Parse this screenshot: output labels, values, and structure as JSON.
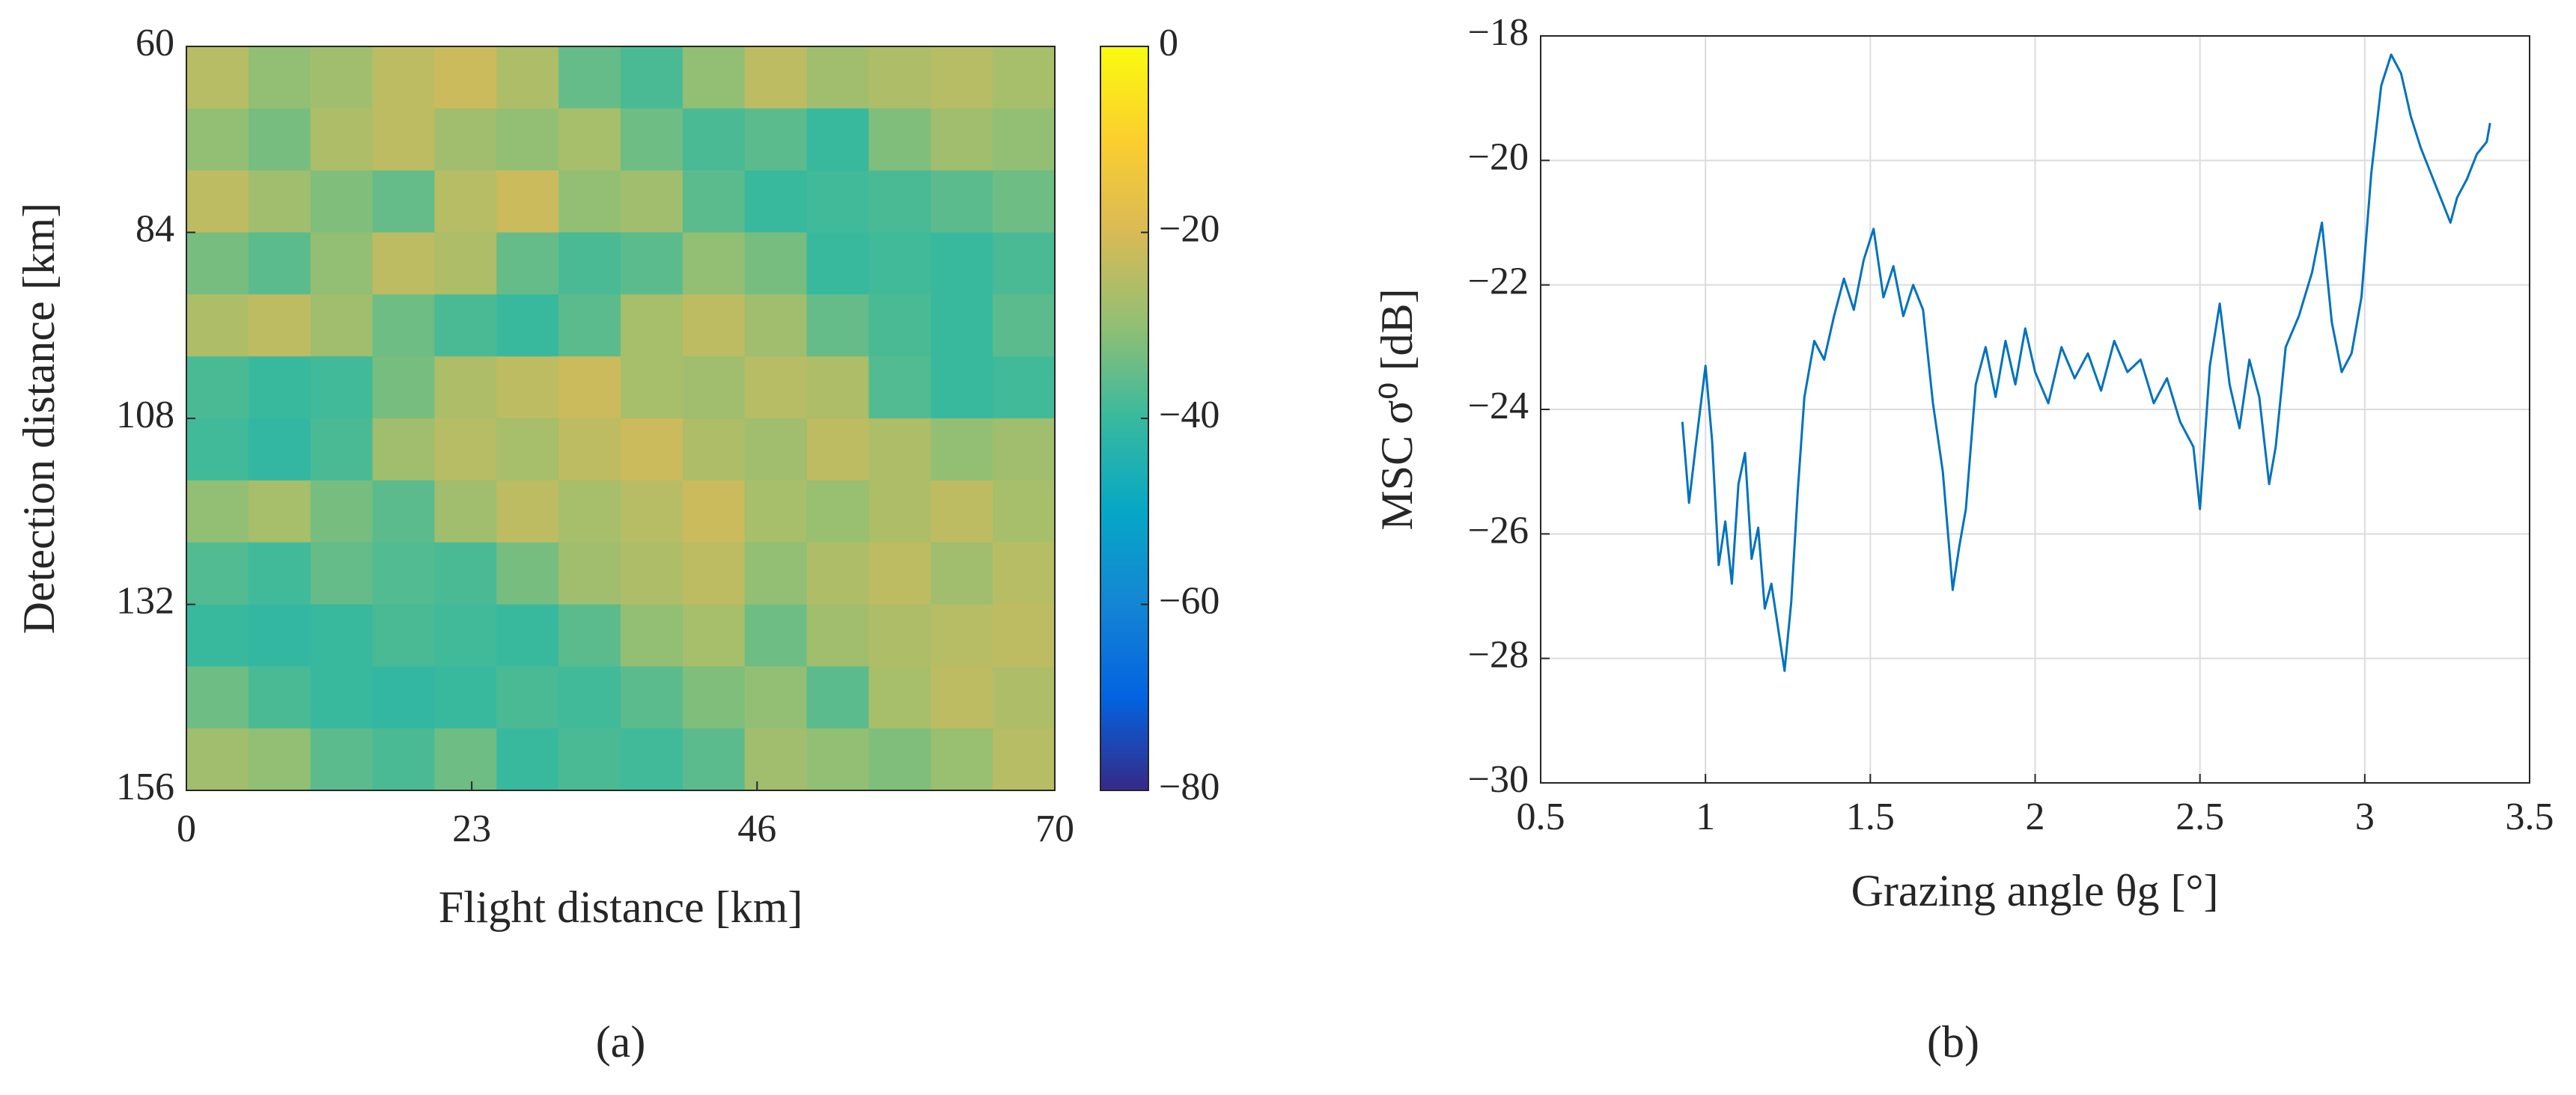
{
  "chart_data": [
    {
      "type": "heatmap",
      "label": "(a)",
      "xlabel": "Flight distance [km]",
      "ylabel": "Detection distance [km]",
      "xlim": [
        0,
        70
      ],
      "xticks": [
        0,
        23,
        46,
        70
      ],
      "ylim": [
        156,
        60
      ],
      "yticks": [
        60,
        84,
        108,
        132,
        156
      ],
      "clim": [
        -80,
        0
      ],
      "cticks": [
        0,
        {
          "value": -20,
          "label": "−20"
        },
        {
          "value": -40,
          "label": "−40"
        },
        {
          "value": -60,
          "label": "−60"
        },
        {
          "value": -80,
          "label": "−80"
        }
      ],
      "colormap": [
        "#352a87",
        "#0363e1",
        "#1485d4",
        "#06a7c6",
        "#38b99e",
        "#92bf73",
        "#d9ba56",
        "#fcce2e",
        "#f9fb0e"
      ],
      "z": [
        [
          -25,
          -30,
          -28,
          -24,
          -22,
          -26,
          -35,
          -38,
          -30,
          -24,
          -28,
          -26,
          -25,
          -27
        ],
        [
          -30,
          -33,
          -26,
          -24,
          -28,
          -30,
          -27,
          -34,
          -38,
          -36,
          -40,
          -32,
          -28,
          -30
        ],
        [
          -24,
          -28,
          -32,
          -35,
          -25,
          -22,
          -30,
          -28,
          -36,
          -40,
          -39,
          -38,
          -36,
          -34
        ],
        [
          -33,
          -36,
          -30,
          -24,
          -26,
          -35,
          -38,
          -36,
          -30,
          -33,
          -40,
          -39,
          -40,
          -38
        ],
        [
          -26,
          -24,
          -28,
          -34,
          -38,
          -40,
          -36,
          -27,
          -24,
          -28,
          -35,
          -38,
          -40,
          -36
        ],
        [
          -38,
          -40,
          -39,
          -33,
          -26,
          -24,
          -22,
          -27,
          -28,
          -25,
          -26,
          -37,
          -40,
          -39
        ],
        [
          -39,
          -41,
          -38,
          -28,
          -25,
          -27,
          -24,
          -22,
          -26,
          -28,
          -24,
          -26,
          -30,
          -28
        ],
        [
          -30,
          -27,
          -33,
          -36,
          -28,
          -24,
          -27,
          -25,
          -22,
          -27,
          -29,
          -26,
          -24,
          -27
        ],
        [
          -37,
          -39,
          -35,
          -37,
          -38,
          -33,
          -28,
          -26,
          -24,
          -30,
          -26,
          -24,
          -28,
          -25
        ],
        [
          -40,
          -41,
          -40,
          -38,
          -39,
          -40,
          -36,
          -30,
          -27,
          -34,
          -28,
          -26,
          -25,
          -24
        ],
        [
          -34,
          -38,
          -40,
          -41,
          -40,
          -38,
          -39,
          -36,
          -32,
          -30,
          -36,
          -27,
          -24,
          -26
        ],
        [
          -28,
          -30,
          -36,
          -38,
          -34,
          -40,
          -38,
          -39,
          -36,
          -28,
          -30,
          -32,
          -29,
          -25
        ]
      ]
    },
    {
      "type": "line",
      "label": "(b)",
      "xlabel": "Grazing angle θg [°]",
      "ylabel": "MSC σ⁰ [dB]",
      "color": "#0072bd",
      "grid": true,
      "xlim": [
        0.5,
        3.5
      ],
      "xticks": [
        0.5,
        1,
        1.5,
        2,
        2.5,
        3,
        3.5
      ],
      "ylim": [
        -30,
        -18
      ],
      "yticks": [
        {
          "value": -30,
          "label": "−30"
        },
        {
          "value": -28,
          "label": "−28"
        },
        {
          "value": -26,
          "label": "−26"
        },
        {
          "value": -24,
          "label": "−24"
        },
        {
          "value": -22,
          "label": "−22"
        },
        {
          "value": -20,
          "label": "−20"
        },
        {
          "value": -18,
          "label": "−18"
        }
      ],
      "x": [
        0.93,
        0.95,
        0.97,
        1.0,
        1.02,
        1.04,
        1.06,
        1.08,
        1.1,
        1.12,
        1.14,
        1.16,
        1.18,
        1.2,
        1.22,
        1.24,
        1.26,
        1.28,
        1.3,
        1.33,
        1.36,
        1.39,
        1.42,
        1.45,
        1.48,
        1.51,
        1.54,
        1.57,
        1.6,
        1.63,
        1.66,
        1.69,
        1.72,
        1.75,
        1.77,
        1.79,
        1.82,
        1.85,
        1.88,
        1.91,
        1.94,
        1.97,
        2.0,
        2.04,
        2.08,
        2.12,
        2.16,
        2.2,
        2.24,
        2.28,
        2.32,
        2.36,
        2.4,
        2.44,
        2.48,
        2.5,
        2.53,
        2.56,
        2.59,
        2.62,
        2.65,
        2.68,
        2.71,
        2.73,
        2.76,
        2.8,
        2.84,
        2.87,
        2.9,
        2.93,
        2.96,
        2.99,
        3.02,
        3.05,
        3.08,
        3.11,
        3.14,
        3.17,
        3.2,
        3.23,
        3.26,
        3.28,
        3.31,
        3.34,
        3.37,
        3.38
      ],
      "values": [
        -24.2,
        -25.5,
        -24.6,
        -23.3,
        -24.5,
        -26.5,
        -25.8,
        -26.8,
        -25.2,
        -24.7,
        -26.4,
        -25.9,
        -27.2,
        -26.8,
        -27.5,
        -28.2,
        -27.1,
        -25.3,
        -23.8,
        -22.9,
        -23.2,
        -22.5,
        -21.9,
        -22.4,
        -21.6,
        -21.1,
        -22.2,
        -21.7,
        -22.5,
        -22.0,
        -22.4,
        -23.9,
        -25.0,
        -26.9,
        -26.2,
        -25.6,
        -23.6,
        -23.0,
        -23.8,
        -22.9,
        -23.6,
        -22.7,
        -23.4,
        -23.9,
        -23.0,
        -23.5,
        -23.1,
        -23.7,
        -22.9,
        -23.4,
        -23.2,
        -23.9,
        -23.5,
        -24.2,
        -24.6,
        -25.6,
        -23.3,
        -22.3,
        -23.6,
        -24.3,
        -23.2,
        -23.8,
        -25.2,
        -24.6,
        -23.0,
        -22.5,
        -21.8,
        -21.0,
        -22.6,
        -23.4,
        -23.1,
        -22.2,
        -20.2,
        -18.8,
        -18.3,
        -18.6,
        -19.3,
        -19.8,
        -20.2,
        -20.6,
        -21.0,
        -20.6,
        -20.3,
        -19.9,
        -19.7,
        -19.4
      ]
    }
  ]
}
